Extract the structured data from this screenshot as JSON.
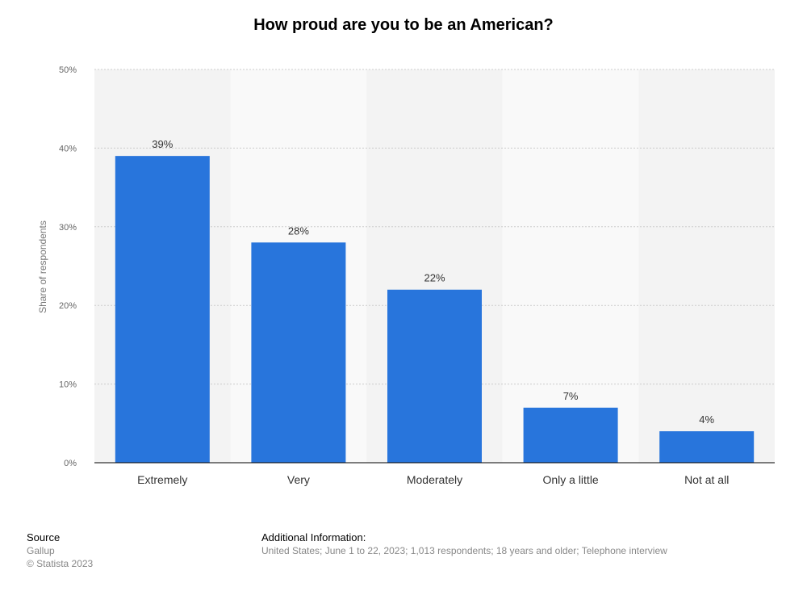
{
  "chart_data": {
    "type": "bar",
    "title": "How proud are you to be an American?",
    "xlabel": "",
    "ylabel": "Share of respondents",
    "categories": [
      "Extremely",
      "Very",
      "Moderately",
      "Only a little",
      "Not at all"
    ],
    "values": [
      39,
      28,
      22,
      7,
      4
    ],
    "value_labels": [
      "39%",
      "28%",
      "22%",
      "7%",
      "4%"
    ],
    "ylim": [
      0,
      50
    ],
    "yticks": [
      0,
      10,
      20,
      30,
      40,
      50
    ],
    "ytick_labels": [
      "0%",
      "10%",
      "20%",
      "30%",
      "40%",
      "50%"
    ],
    "grid": true,
    "legend": "none",
    "colors": {
      "bar": "#2875dc",
      "band_light": "#f9f9f9",
      "band_dark": "#f3f3f3",
      "grid": "#cccccc",
      "axis": "#000000"
    }
  },
  "footer": {
    "source_heading": "Source",
    "source_text": "Gallup",
    "copyright": "© Statista 2023",
    "additional_heading": "Additional Information:",
    "additional_text": "United States; June 1 to 22, 2023; 1,013 respondents; 18 years and older; Telephone interview"
  }
}
